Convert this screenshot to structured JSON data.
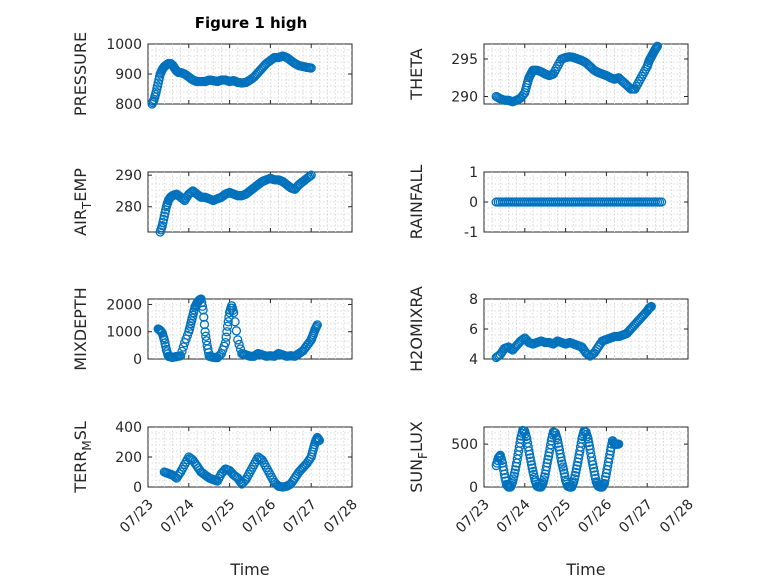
{
  "figure_title": "Figure 1 high",
  "colors": {
    "marker": "#0072bd",
    "axis": "#262626",
    "grid": "#d0d0d0"
  },
  "x_tick_labels": [
    "07/23",
    "07/24",
    "07/25",
    "07/26",
    "07/27",
    "07/28"
  ],
  "chart_data": [
    {
      "type": "scatter",
      "ylabel": "PRESSURE",
      "xlabel": "",
      "xlim": [
        0,
        5
      ],
      "ylim": [
        800,
        1000
      ],
      "yticks": [
        800,
        900,
        1000
      ],
      "grid": true,
      "title": "Figure 1 high",
      "x": [
        0.1,
        0.15,
        0.2,
        0.25,
        0.3,
        0.35,
        0.4,
        0.45,
        0.5,
        0.55,
        0.6,
        0.65,
        0.7,
        0.75,
        0.8,
        0.9,
        1.0,
        1.1,
        1.2,
        1.3,
        1.4,
        1.5,
        1.6,
        1.7,
        1.8,
        1.9,
        2.0,
        2.1,
        2.2,
        2.3,
        2.4,
        2.5,
        2.6,
        2.7,
        2.8,
        2.9,
        3.0,
        3.1,
        3.2,
        3.3,
        3.4,
        3.5,
        3.6,
        3.7,
        3.8,
        3.9,
        4.0,
        4.1,
        4.2,
        4.3,
        4.4
      ],
      "y": [
        800,
        815,
        840,
        870,
        900,
        915,
        925,
        930,
        935,
        935,
        930,
        920,
        910,
        905,
        905,
        900,
        890,
        880,
        875,
        875,
        875,
        880,
        878,
        875,
        880,
        880,
        875,
        878,
        872,
        870,
        872,
        880,
        890,
        905,
        920,
        935,
        945,
        955,
        955,
        960,
        955,
        945,
        935,
        928,
        925,
        922,
        920,
        null,
        null,
        null,
        null
      ]
    },
    {
      "type": "scatter",
      "ylabel": "THETA",
      "xlabel": "",
      "xlim": [
        0,
        5
      ],
      "ylim": [
        289,
        297
      ],
      "yticks": [
        290,
        295
      ],
      "grid": true,
      "x": [
        0.3,
        0.4,
        0.5,
        0.6,
        0.7,
        0.8,
        0.9,
        1.0,
        1.05,
        1.1,
        1.15,
        1.2,
        1.3,
        1.4,
        1.5,
        1.6,
        1.7,
        1.8,
        1.9,
        2.0,
        2.1,
        2.2,
        2.3,
        2.4,
        2.5,
        2.6,
        2.7,
        2.8,
        2.9,
        3.0,
        3.1,
        3.2,
        3.3,
        3.4,
        3.5,
        3.6,
        3.7,
        3.8,
        3.9,
        4.0,
        4.05,
        4.1,
        4.15,
        4.2,
        4.25,
        4.3,
        4.35,
        4.4
      ],
      "y": [
        290,
        289.7,
        289.5,
        289.5,
        289.3,
        289.5,
        289.8,
        290.5,
        291.5,
        292.5,
        293,
        293.5,
        293.5,
        293.3,
        293,
        292.8,
        293,
        294,
        295,
        295.2,
        295.3,
        295.2,
        295,
        294.8,
        294.5,
        294,
        293.5,
        293.2,
        293,
        292.8,
        292.5,
        292.3,
        292.5,
        292,
        291.5,
        291,
        291,
        292,
        293,
        294,
        294.8,
        295.3,
        295.8,
        296.3,
        296.7,
        null,
        null,
        null
      ]
    },
    {
      "type": "scatter",
      "ylabel": "AIR_TEMP",
      "xlabel": "",
      "xlim": [
        0,
        5
      ],
      "ylim": [
        272,
        291
      ],
      "yticks": [
        280,
        290
      ],
      "grid": true,
      "x": [
        0.3,
        0.35,
        0.4,
        0.45,
        0.5,
        0.55,
        0.6,
        0.7,
        0.8,
        0.9,
        1.0,
        1.1,
        1.2,
        1.3,
        1.4,
        1.5,
        1.6,
        1.7,
        1.8,
        1.9,
        2.0,
        2.1,
        2.2,
        2.3,
        2.4,
        2.5,
        2.6,
        2.7,
        2.8,
        2.9,
        3.0,
        3.1,
        3.2,
        3.3,
        3.4,
        3.5,
        3.6,
        3.7,
        3.8,
        3.9,
        4.0,
        4.1,
        4.2,
        4.3,
        4.35,
        4.4
      ],
      "y": [
        272,
        274,
        277,
        280,
        282,
        283,
        283.5,
        284,
        283,
        282,
        284,
        285,
        284,
        283,
        283,
        282.5,
        282,
        282.5,
        283,
        284,
        284.5,
        284,
        283.5,
        283.5,
        284,
        285,
        286,
        287,
        288,
        288.5,
        289,
        288.5,
        288.5,
        288,
        287,
        286,
        285.5,
        287,
        288,
        289,
        290,
        null,
        null,
        null,
        null,
        null
      ]
    },
    {
      "type": "scatter",
      "ylabel": "RAINFALL",
      "xlabel": "",
      "xlim": [
        0,
        5
      ],
      "ylim": [
        -1,
        1
      ],
      "yticks": [
        -1,
        0,
        1
      ],
      "grid": true,
      "x": [
        0.3,
        0.45,
        0.6,
        0.75,
        0.9,
        1.05,
        1.2,
        1.35,
        1.5,
        1.65,
        1.8,
        1.95,
        2.1,
        2.25,
        2.4,
        2.55,
        2.7,
        2.85,
        3.0,
        3.15,
        3.3,
        3.45,
        3.6,
        3.75,
        3.9,
        4.05,
        4.2,
        4.35
      ],
      "y": [
        0,
        0,
        0,
        0,
        0,
        0,
        0,
        0,
        0,
        0,
        0,
        0,
        0,
        0,
        0,
        0,
        0,
        0,
        0,
        0,
        0,
        0,
        0,
        0,
        0,
        0,
        0,
        0
      ]
    },
    {
      "type": "scatter",
      "ylabel": "MIXDEPTH",
      "xlabel": "",
      "xlim": [
        0,
        5
      ],
      "ylim": [
        0,
        2200
      ],
      "yticks": [
        0,
        1000,
        2000
      ],
      "grid": true,
      "x": [
        0.25,
        0.3,
        0.35,
        0.4,
        0.45,
        0.5,
        0.55,
        0.6,
        0.7,
        0.8,
        0.9,
        1.0,
        1.05,
        1.1,
        1.15,
        1.2,
        1.25,
        1.3,
        1.35,
        1.4,
        1.45,
        1.5,
        1.6,
        1.7,
        1.8,
        1.9,
        1.95,
        2.0,
        2.05,
        2.1,
        2.2,
        2.3,
        2.4,
        2.5,
        2.6,
        2.7,
        2.8,
        2.9,
        3.0,
        3.1,
        3.2,
        3.3,
        3.4,
        3.5,
        3.6,
        3.7,
        3.8,
        3.9,
        4.0,
        4.05,
        4.1,
        4.15,
        4.2,
        4.25
      ],
      "y": [
        1100,
        1050,
        950,
        700,
        350,
        100,
        80,
        60,
        90,
        120,
        600,
        1000,
        1300,
        1600,
        1900,
        2050,
        2150,
        2200,
        1800,
        1000,
        500,
        100,
        60,
        50,
        200,
        600,
        1200,
        1700,
        1950,
        1700,
        700,
        200,
        150,
        100,
        100,
        200,
        150,
        100,
        120,
        100,
        200,
        150,
        100,
        120,
        100,
        200,
        300,
        500,
        700,
        900,
        1100,
        1250,
        null,
        null
      ]
    },
    {
      "type": "scatter",
      "ylabel": "H2OMIXRA",
      "xlabel": "",
      "xlim": [
        0,
        5
      ],
      "ylim": [
        4,
        8
      ],
      "yticks": [
        4,
        6,
        8
      ],
      "grid": true,
      "x": [
        0.3,
        0.4,
        0.5,
        0.6,
        0.7,
        0.8,
        0.9,
        1.0,
        1.1,
        1.2,
        1.3,
        1.4,
        1.5,
        1.6,
        1.7,
        1.8,
        1.9,
        2.0,
        2.1,
        2.2,
        2.3,
        2.4,
        2.5,
        2.6,
        2.7,
        2.8,
        2.9,
        3.0,
        3.1,
        3.2,
        3.3,
        3.4,
        3.5,
        3.6,
        3.7,
        3.8,
        3.9,
        4.0,
        4.05,
        4.1,
        4.15,
        4.2,
        4.25,
        4.3,
        4.35,
        4.4
      ],
      "y": [
        4.1,
        4.3,
        4.7,
        4.8,
        4.6,
        4.9,
        5.2,
        5.4,
        5.1,
        5.0,
        5.1,
        5.2,
        5.1,
        5.1,
        5.0,
        5.2,
        5.1,
        5.0,
        5.1,
        5.0,
        4.9,
        4.8,
        4.4,
        4.2,
        4.4,
        4.8,
        5.2,
        5.3,
        5.4,
        5.5,
        5.5,
        5.6,
        5.7,
        6.0,
        6.3,
        6.6,
        6.9,
        7.2,
        7.4,
        7.5,
        null,
        null,
        null,
        null,
        null,
        null
      ]
    },
    {
      "type": "scatter",
      "ylabel": "TERR_MSL",
      "xlabel": "Time",
      "xlim": [
        0,
        5
      ],
      "ylim": [
        0,
        400
      ],
      "yticks": [
        0,
        200,
        400
      ],
      "grid": true,
      "x": [
        0.4,
        0.5,
        0.6,
        0.7,
        0.8,
        0.9,
        1.0,
        1.1,
        1.2,
        1.3,
        1.4,
        1.5,
        1.6,
        1.7,
        1.8,
        1.9,
        2.0,
        2.1,
        2.2,
        2.3,
        2.4,
        2.5,
        2.6,
        2.7,
        2.8,
        2.9,
        3.0,
        3.1,
        3.2,
        3.3,
        3.4,
        3.5,
        3.6,
        3.7,
        3.8,
        3.9,
        4.0,
        4.05,
        4.1,
        4.15,
        4.2
      ],
      "y": [
        100,
        90,
        80,
        60,
        100,
        150,
        200,
        180,
        140,
        100,
        80,
        60,
        50,
        40,
        90,
        120,
        110,
        80,
        60,
        20,
        50,
        100,
        150,
        200,
        180,
        130,
        80,
        30,
        5,
        0,
        5,
        20,
        60,
        100,
        130,
        160,
        200,
        250,
        300,
        330,
        310
      ]
    },
    {
      "type": "scatter",
      "ylabel": "SUN_FLUX",
      "xlabel": "Time",
      "xlim": [
        0,
        5
      ],
      "ylim": [
        0,
        700
      ],
      "yticks": [
        0,
        500
      ],
      "grid": true,
      "x": [
        0.3,
        0.35,
        0.4,
        0.45,
        0.5,
        0.55,
        0.6,
        0.65,
        0.7,
        0.75,
        0.8,
        0.85,
        0.9,
        0.95,
        1.0,
        1.05,
        1.1,
        1.15,
        1.2,
        1.25,
        1.3,
        1.35,
        1.4,
        1.45,
        1.5,
        1.55,
        1.6,
        1.65,
        1.7,
        1.75,
        1.8,
        1.85,
        1.9,
        1.95,
        2.0,
        2.05,
        2.1,
        2.15,
        2.2,
        2.25,
        2.3,
        2.35,
        2.4,
        2.45,
        2.5,
        2.55,
        2.6,
        2.65,
        2.7,
        2.75,
        2.8,
        2.85,
        2.9,
        2.95,
        3.0,
        3.05,
        3.1,
        3.15,
        3.2,
        3.25,
        3.3,
        3.35,
        3.4,
        3.45,
        3.5,
        3.55,
        3.6,
        3.65,
        3.7,
        3.75,
        3.8,
        3.85,
        3.9,
        3.95,
        4.0,
        4.05,
        4.1,
        4.15,
        4.2,
        4.25,
        4.3,
        4.35,
        4.4
      ],
      "y": [
        250,
        340,
        370,
        280,
        150,
        30,
        0,
        0,
        60,
        160,
        280,
        420,
        560,
        660,
        650,
        560,
        420,
        300,
        180,
        80,
        10,
        0,
        0,
        50,
        150,
        280,
        400,
        540,
        640,
        630,
        550,
        430,
        300,
        200,
        80,
        10,
        0,
        0,
        60,
        170,
        290,
        420,
        560,
        650,
        640,
        560,
        440,
        300,
        180,
        60,
        10,
        0,
        0,
        40,
        160,
        290,
        420,
        540,
        500,
        500,
        500,
        null,
        null,
        null,
        null,
        null,
        null,
        null,
        null,
        null,
        null,
        null,
        null,
        null,
        null,
        null,
        null,
        null,
        null,
        null,
        null,
        null,
        null
      ]
    }
  ]
}
